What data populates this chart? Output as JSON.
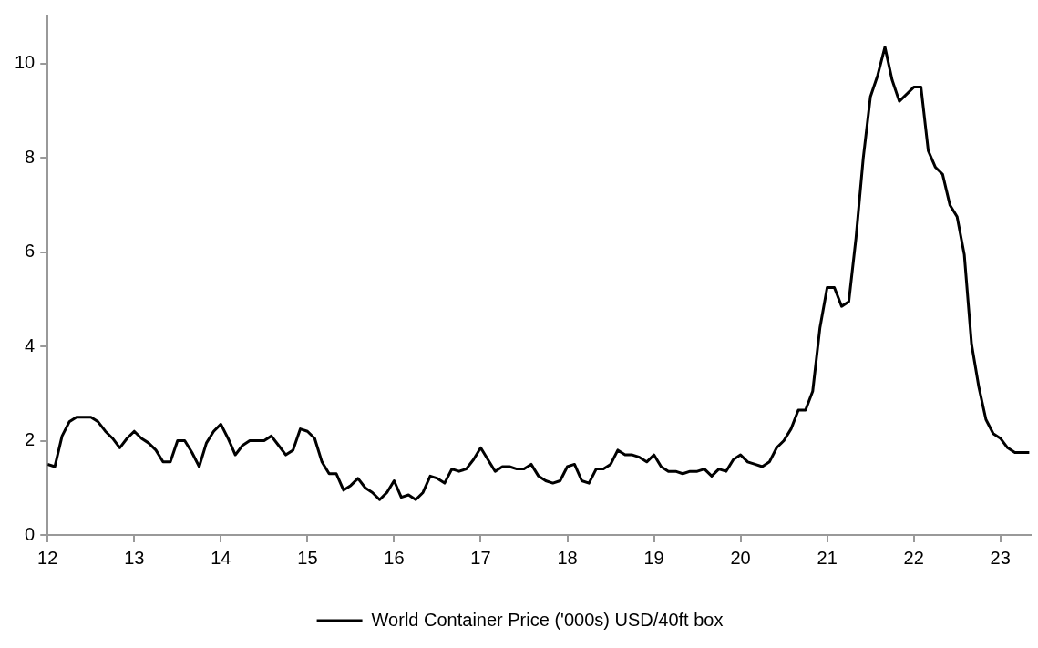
{
  "chart_data": {
    "type": "line",
    "xlim": [
      12,
      23.35
    ],
    "xticks": [
      12,
      13,
      14,
      15,
      16,
      17,
      18,
      19,
      20,
      21,
      22,
      23
    ],
    "ylim": [
      0,
      11
    ],
    "yticks": [
      0,
      2,
      4,
      6,
      8,
      10
    ],
    "grid": false,
    "legend": "bottom",
    "marker": "none",
    "line_style": "solid",
    "x": [
      12,
      12.083,
      12.167,
      12.25,
      12.333,
      12.417,
      12.5,
      12.583,
      12.667,
      12.75,
      12.833,
      12.917,
      13,
      13.083,
      13.167,
      13.25,
      13.333,
      13.417,
      13.5,
      13.583,
      13.667,
      13.75,
      13.833,
      13.917,
      14,
      14.083,
      14.167,
      14.25,
      14.333,
      14.417,
      14.5,
      14.583,
      14.667,
      14.75,
      14.833,
      14.917,
      15,
      15.083,
      15.167,
      15.25,
      15.333,
      15.417,
      15.5,
      15.583,
      15.667,
      15.75,
      15.833,
      15.917,
      16,
      16.083,
      16.167,
      16.25,
      16.333,
      16.417,
      16.5,
      16.583,
      16.667,
      16.75,
      16.833,
      16.917,
      17,
      17.083,
      17.167,
      17.25,
      17.333,
      17.417,
      17.5,
      17.583,
      17.667,
      17.75,
      17.833,
      17.917,
      18,
      18.083,
      18.167,
      18.25,
      18.333,
      18.417,
      18.5,
      18.583,
      18.667,
      18.75,
      18.833,
      18.917,
      19,
      19.083,
      19.167,
      19.25,
      19.333,
      19.417,
      19.5,
      19.583,
      19.667,
      19.75,
      19.833,
      19.917,
      20,
      20.083,
      20.167,
      20.25,
      20.333,
      20.417,
      20.5,
      20.583,
      20.667,
      20.75,
      20.833,
      20.917,
      21,
      21.083,
      21.167,
      21.25,
      21.333,
      21.417,
      21.5,
      21.583,
      21.667,
      21.75,
      21.833,
      21.917,
      22,
      22.083,
      22.167,
      22.25,
      22.333,
      22.417,
      22.5,
      22.583,
      22.667,
      22.75,
      22.833,
      22.917,
      23,
      23.083,
      23.167,
      23.25,
      23.333
    ],
    "series": [
      {
        "name": "World Container Price ('000s) USD/40ft box",
        "color": "#000000",
        "values": [
          1.5,
          1.45,
          2.1,
          2.4,
          2.5,
          2.5,
          2.5,
          2.4,
          2.2,
          2.05,
          1.85,
          2.05,
          2.2,
          2.05,
          1.95,
          1.8,
          1.55,
          1.55,
          2.0,
          2.0,
          1.75,
          1.45,
          1.95,
          2.2,
          2.35,
          2.05,
          1.7,
          1.9,
          2.0,
          2.0,
          2.0,
          2.1,
          1.9,
          1.7,
          1.8,
          2.25,
          2.2,
          2.05,
          1.55,
          1.3,
          1.3,
          0.95,
          1.05,
          1.2,
          1.0,
          0.9,
          0.75,
          0.9,
          1.15,
          0.8,
          0.85,
          0.75,
          0.9,
          1.25,
          1.2,
          1.1,
          1.4,
          1.35,
          1.4,
          1.6,
          1.85,
          1.6,
          1.35,
          1.45,
          1.45,
          1.4,
          1.4,
          1.5,
          1.25,
          1.15,
          1.1,
          1.15,
          1.45,
          1.5,
          1.15,
          1.1,
          1.4,
          1.4,
          1.5,
          1.8,
          1.7,
          1.7,
          1.65,
          1.55,
          1.7,
          1.45,
          1.35,
          1.35,
          1.3,
          1.35,
          1.35,
          1.4,
          1.25,
          1.4,
          1.35,
          1.6,
          1.7,
          1.55,
          1.5,
          1.45,
          1.55,
          1.85,
          2.0,
          2.25,
          2.65,
          2.65,
          3.05,
          4.4,
          5.25,
          5.25,
          4.85,
          4.95,
          6.3,
          8.0,
          9.3,
          9.75,
          10.35,
          9.65,
          9.2,
          9.35,
          9.5,
          9.5,
          8.15,
          7.8,
          7.65,
          7.0,
          6.75,
          5.95,
          4.05,
          3.15,
          2.45,
          2.15,
          2.05,
          1.85,
          1.75,
          1.75,
          1.75
        ]
      }
    ]
  }
}
